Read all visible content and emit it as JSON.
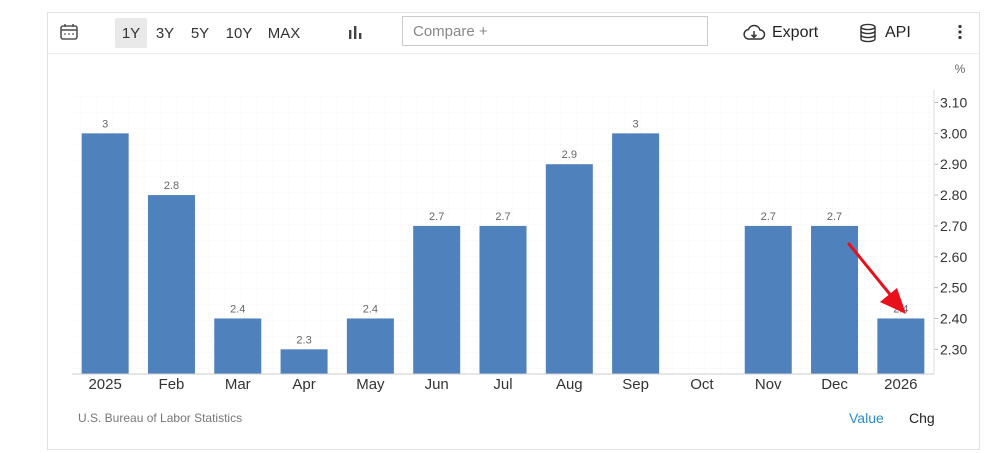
{
  "toolbar": {
    "calendar_icon": "calendar-icon",
    "ranges": [
      "1Y",
      "3Y",
      "5Y",
      "10Y",
      "MAX"
    ],
    "active_range": "1Y",
    "chart_type_icon": "bar-chart-icon",
    "compare_placeholder": "Compare +",
    "export_label": "Export",
    "export_icon": "cloud-download-icon",
    "api_label": "API",
    "api_icon": "database-icon",
    "more_icon": "more-vertical-icon"
  },
  "chart_data": {
    "type": "bar",
    "unit_label": "%",
    "categories": [
      "2025",
      "Feb",
      "Mar",
      "Apr",
      "May",
      "Jun",
      "Jul",
      "Aug",
      "Sep",
      "Oct",
      "Nov",
      "Dec",
      "2026"
    ],
    "values": [
      3.0,
      2.8,
      2.4,
      2.3,
      2.4,
      2.7,
      2.7,
      2.9,
      3.0,
      null,
      2.7,
      2.7,
      2.4
    ],
    "data_labels": [
      "3",
      "2.8",
      "2.4",
      "2.3",
      "2.4",
      "2.7",
      "2.7",
      "2.9",
      "3",
      "",
      "2.7",
      "2.7",
      "2.4"
    ],
    "y_ticks": [
      "3.10",
      "3.00",
      "2.90",
      "2.80",
      "2.70",
      "2.60",
      "2.50",
      "2.40",
      "2.30"
    ],
    "ylim": [
      2.22,
      3.16
    ],
    "bar_color": "#4f81bd",
    "annotation_color": "#e8101a",
    "annotation": "red arrow pointing to the 2026 bar",
    "grid": true
  },
  "footer": {
    "source": "U.S. Bureau of Labor Statistics",
    "value_label": "Value",
    "chg_label": "Chg"
  }
}
